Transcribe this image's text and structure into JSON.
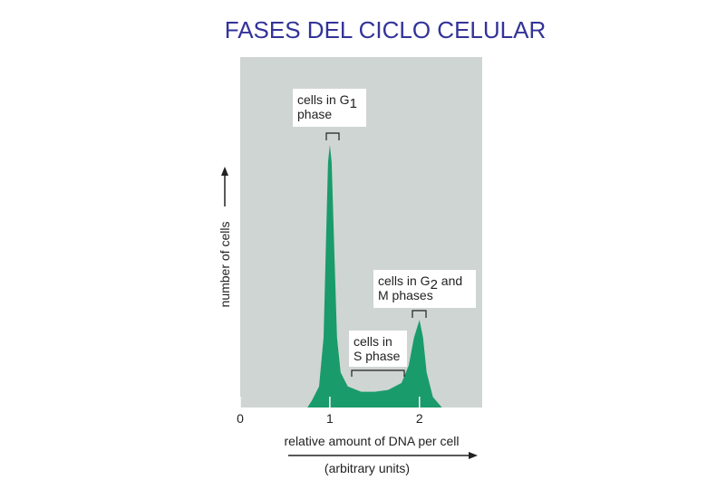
{
  "chart_data": {
    "type": "area",
    "title": "FASES DEL CICLO CELULAR",
    "y_label": "number of cells",
    "x_label": "relative amount of DNA per cell",
    "x_sublabel": "(arbitrary units)",
    "x": [
      0.75,
      0.8,
      0.88,
      0.93,
      0.96,
      0.98,
      1.0,
      1.02,
      1.05,
      1.08,
      1.12,
      1.2,
      1.35,
      1.5,
      1.65,
      1.8,
      1.88,
      1.94,
      2.0,
      2.04,
      2.08,
      2.15,
      2.25
    ],
    "y": [
      0,
      2,
      6,
      20,
      50,
      70,
      75,
      70,
      45,
      20,
      10,
      6,
      4.5,
      4.5,
      5,
      7,
      12,
      20,
      25,
      20,
      10,
      3,
      0
    ],
    "color": "#1a9b6c",
    "background": "#cfd5d2",
    "xlim": [
      0,
      2.7
    ],
    "ylim": [
      0,
      100
    ],
    "xticks": [
      0,
      1,
      2
    ],
    "annotations": [
      {
        "lines": [
          [
            {
              "text": "cells in G"
            },
            {
              "text": "1",
              "sub": true
            }
          ],
          [
            {
              "text": "phase"
            }
          ]
        ]
      },
      {
        "lines": [
          [
            {
              "text": "cells in G"
            },
            {
              "text": "2",
              "sub": true
            },
            {
              "text": " and"
            }
          ],
          [
            {
              "text": "M phases"
            }
          ]
        ]
      },
      {
        "lines": [
          [
            {
              "text": "cells in"
            }
          ],
          [
            {
              "text": "S phase"
            }
          ]
        ]
      }
    ]
  }
}
